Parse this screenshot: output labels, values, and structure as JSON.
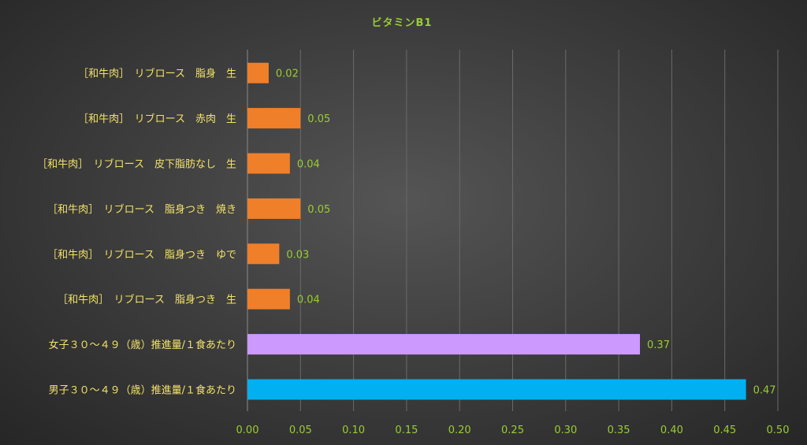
{
  "chart_data": {
    "type": "bar",
    "orientation": "horizontal",
    "title": "ビタミンB1",
    "categories": [
      "［和牛肉］　リブロース　脂身　生",
      "［和牛肉］　リブロース　赤肉　生",
      "［和牛肉］　リブロース　皮下脂肪なし　生",
      "［和牛肉］　リブロース　脂身つき　焼き",
      "［和牛肉］　リブロース　脂身つき　ゆで",
      "［和牛肉］　リブロース　脂身つき　生",
      "女子３０～４９（歳）推進量/１食あたり",
      "男子３０～４９（歳）推進量/１食あたり"
    ],
    "values": [
      0.02,
      0.05,
      0.04,
      0.05,
      0.03,
      0.04,
      0.37,
      0.47
    ],
    "value_labels": [
      "0.02",
      "0.05",
      "0.04",
      "0.05",
      "0.03",
      "0.04",
      "0.37",
      "0.47"
    ],
    "bar_colors": [
      "#F07F2A",
      "#F07F2A",
      "#F07F2A",
      "#F07F2A",
      "#F07F2A",
      "#F07F2A",
      "#CC99FF",
      "#00B0F0"
    ],
    "xlim": [
      0,
      0.5
    ],
    "xticks": [
      "0.00",
      "0.05",
      "0.10",
      "0.15",
      "0.20",
      "0.25",
      "0.30",
      "0.35",
      "0.40",
      "0.45",
      "0.50"
    ],
    "grid": true,
    "legend": "none"
  }
}
